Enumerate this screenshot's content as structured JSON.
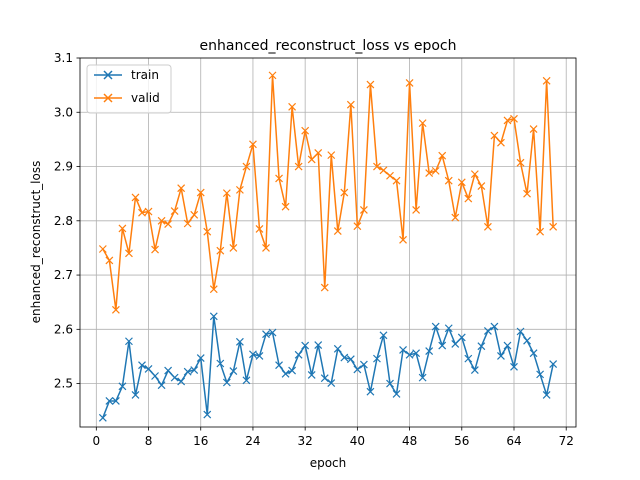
{
  "chart_data": {
    "type": "line",
    "title": "enhanced_reconstruct_loss vs epoch",
    "xlabel": "epoch",
    "ylabel": "enhanced_reconstruct_loss",
    "xlim": [
      -2.5,
      73.5
    ],
    "ylim": [
      2.42,
      3.1
    ],
    "xticks": [
      0,
      8,
      16,
      24,
      32,
      40,
      48,
      56,
      64,
      72
    ],
    "yticks": [
      2.5,
      2.6,
      2.7,
      2.8,
      2.9,
      3.0,
      3.1
    ],
    "ytick_labels": [
      "2.5",
      "2.6",
      "2.7",
      "2.8",
      "2.9",
      "3.0",
      "3.1"
    ],
    "grid": true,
    "legend_position": "upper-left",
    "marker": "x",
    "x": [
      1,
      2,
      3,
      4,
      5,
      6,
      7,
      8,
      9,
      10,
      11,
      12,
      13,
      14,
      15,
      16,
      17,
      18,
      19,
      20,
      21,
      22,
      23,
      24,
      25,
      26,
      27,
      28,
      29,
      30,
      31,
      32,
      33,
      34,
      35,
      36,
      37,
      38,
      39,
      40,
      41,
      42,
      43,
      44,
      45,
      46,
      47,
      48,
      49,
      50,
      51,
      52,
      53,
      54,
      55,
      56,
      57,
      58,
      59,
      60,
      61,
      62,
      63,
      64,
      65,
      66,
      67,
      68,
      69,
      70
    ],
    "series": [
      {
        "name": "train",
        "color": "#1f77b4",
        "values": [
          2.437,
          2.468,
          2.468,
          2.495,
          2.578,
          2.479,
          2.534,
          2.527,
          2.514,
          2.497,
          2.524,
          2.511,
          2.504,
          2.522,
          2.525,
          2.547,
          2.443,
          2.624,
          2.537,
          2.502,
          2.523,
          2.577,
          2.506,
          2.554,
          2.551,
          2.591,
          2.594,
          2.534,
          2.518,
          2.524,
          2.553,
          2.57,
          2.516,
          2.571,
          2.51,
          2.501,
          2.564,
          2.548,
          2.545,
          2.526,
          2.535,
          2.485,
          2.546,
          2.589,
          2.5,
          2.481,
          2.562,
          2.553,
          2.556,
          2.511,
          2.56,
          2.605,
          2.57,
          2.602,
          2.573,
          2.585,
          2.546,
          2.525,
          2.569,
          2.597,
          2.605,
          2.551,
          2.57,
          2.531,
          2.596,
          2.579,
          2.556,
          2.517,
          2.479,
          2.536
        ]
      },
      {
        "name": "valid",
        "color": "#ff7f0e",
        "values": [
          2.748,
          2.727,
          2.636,
          2.786,
          2.74,
          2.843,
          2.815,
          2.817,
          2.747,
          2.8,
          2.794,
          2.818,
          2.86,
          2.795,
          2.811,
          2.852,
          2.78,
          2.674,
          2.745,
          2.851,
          2.75,
          2.857,
          2.9,
          2.941,
          2.785,
          2.75,
          3.068,
          2.878,
          2.826,
          3.01,
          2.9,
          2.966,
          2.913,
          2.925,
          2.677,
          2.921,
          2.781,
          2.852,
          3.014,
          2.79,
          2.82,
          3.051,
          2.9,
          2.893,
          2.883,
          2.874,
          2.765,
          3.054,
          2.82,
          2.98,
          2.888,
          2.892,
          2.92,
          2.874,
          2.806,
          2.871,
          2.841,
          2.886,
          2.864,
          2.789,
          2.957,
          2.944,
          2.985,
          2.988,
          2.907,
          2.85,
          2.969,
          2.78,
          3.058,
          2.789
        ]
      }
    ]
  }
}
